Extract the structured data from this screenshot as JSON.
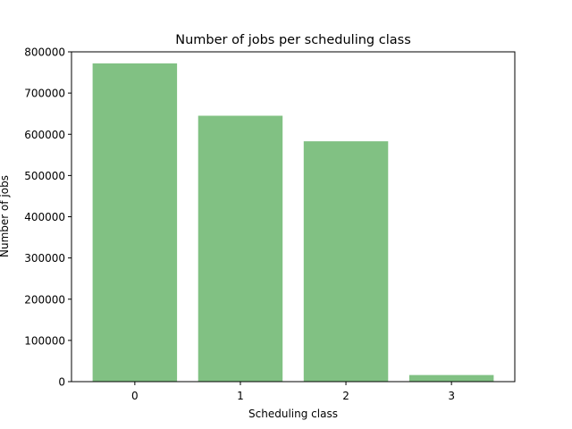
{
  "chart_data": {
    "type": "bar",
    "title": "Number of jobs per scheduling class",
    "xlabel": "Scheduling class",
    "ylabel": "Number of jobs",
    "categories": [
      "0",
      "1",
      "2",
      "3"
    ],
    "values": [
      772000,
      645000,
      583000,
      16000
    ],
    "ylim": [
      0,
      800000
    ],
    "yticks": [
      "0",
      "100000",
      "200000",
      "300000",
      "400000",
      "500000",
      "600000",
      "700000",
      "800000"
    ],
    "bar_color": "#81c183",
    "grid": false,
    "legend": "none"
  }
}
